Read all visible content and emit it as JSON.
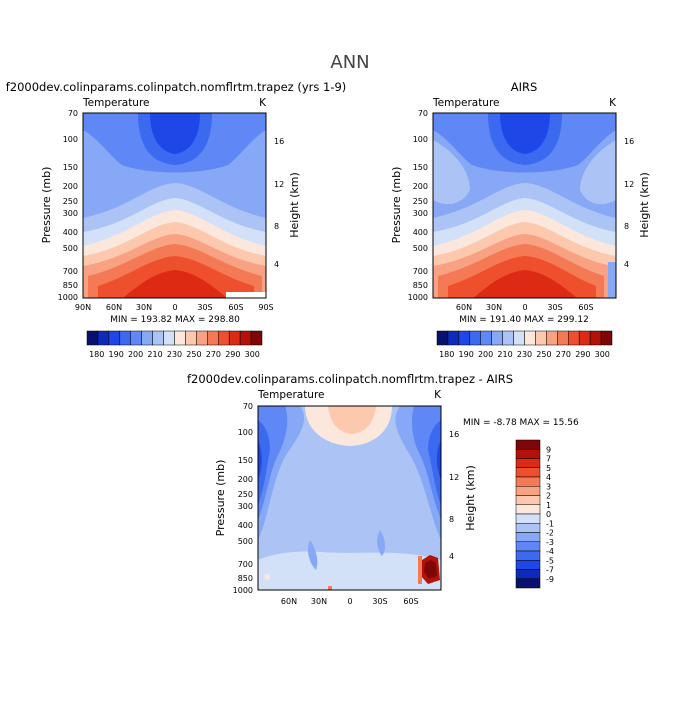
{
  "figure_title": "ANN",
  "colors": {
    "scale": [
      "#08126e",
      "#0d2bb8",
      "#1f46e6",
      "#3b69f0",
      "#5f87f5",
      "#86a8f6",
      "#acc4f5",
      "#d3e1f8",
      "#fbe7dc",
      "#fcc8ae",
      "#f8a283",
      "#f47a55",
      "#ee4f2c",
      "#dd2a14",
      "#b3110a",
      "#7d0606"
    ],
    "diff_scale": [
      "#08126e",
      "#0d2bb8",
      "#1f46e6",
      "#3b69f0",
      "#5f87f5",
      "#86a8f6",
      "#acc4f5",
      "#d3e1f8",
      "#fbe7dc",
      "#fcc8ae",
      "#f8a283",
      "#f47a55",
      "#ee4f2c",
      "#dd2a14",
      "#b3110a",
      "#7d0606"
    ]
  },
  "chart_data": [
    {
      "type": "heatmap",
      "panel_title": "f2000dev.colinparams.colinpatch.nomflrtm.trapez (yrs 1-9)",
      "left_label": "Temperature",
      "right_label": "K",
      "ylabel": "Pressure (mb)",
      "y2label": "Height (km)",
      "yticks": [
        "70",
        "100",
        "150",
        "200",
        "250",
        "300",
        "400",
        "500",
        "700",
        "850",
        "1000"
      ],
      "y2ticks": [
        "16",
        "12",
        "8",
        "4"
      ],
      "xticks": [
        "90N",
        "60N",
        "30N",
        "0",
        "30S",
        "60S",
        "90S"
      ],
      "stats": "MIN = 193.82   MAX = 298.80",
      "colorbar_labels": [
        "180",
        "190",
        "200",
        "210",
        "230",
        "250",
        "270",
        "290",
        "300"
      ]
    },
    {
      "type": "heatmap",
      "panel_title": "AIRS",
      "left_label": "Temperature",
      "right_label": "K",
      "ylabel": "Pressure (mb)",
      "y2label": "Height (km)",
      "yticks": [
        "70",
        "100",
        "150",
        "200",
        "250",
        "300",
        "400",
        "500",
        "700",
        "850",
        "1000"
      ],
      "y2ticks": [
        "16",
        "12",
        "8",
        "4"
      ],
      "xticks": [
        "60N",
        "30N",
        "0",
        "30S",
        "60S"
      ],
      "stats": "MIN = 191.40   MAX = 299.12",
      "colorbar_labels": [
        "180",
        "190",
        "200",
        "210",
        "230",
        "250",
        "270",
        "290",
        "300"
      ]
    },
    {
      "type": "heatmap",
      "panel_title": "f2000dev.colinparams.colinpatch.nomflrtm.trapez - AIRS",
      "left_label": "Temperature",
      "right_label": "K",
      "ylabel": "Pressure (mb)",
      "y2label": "Height (km)",
      "yticks": [
        "70",
        "100",
        "150",
        "200",
        "250",
        "300",
        "400",
        "500",
        "700",
        "850",
        "1000"
      ],
      "y2ticks": [
        "16",
        "12",
        "8",
        "4"
      ],
      "xticks": [
        "60N",
        "30N",
        "0",
        "30S",
        "60S"
      ],
      "stats": "MIN =  -8.78   MAX =  15.56",
      "colorbar_labels": [
        "9",
        "7",
        "5",
        "4",
        "3",
        "2",
        "1",
        "0",
        "-1",
        "-2",
        "-3",
        "-4",
        "-5",
        "-7",
        "-9"
      ]
    }
  ]
}
